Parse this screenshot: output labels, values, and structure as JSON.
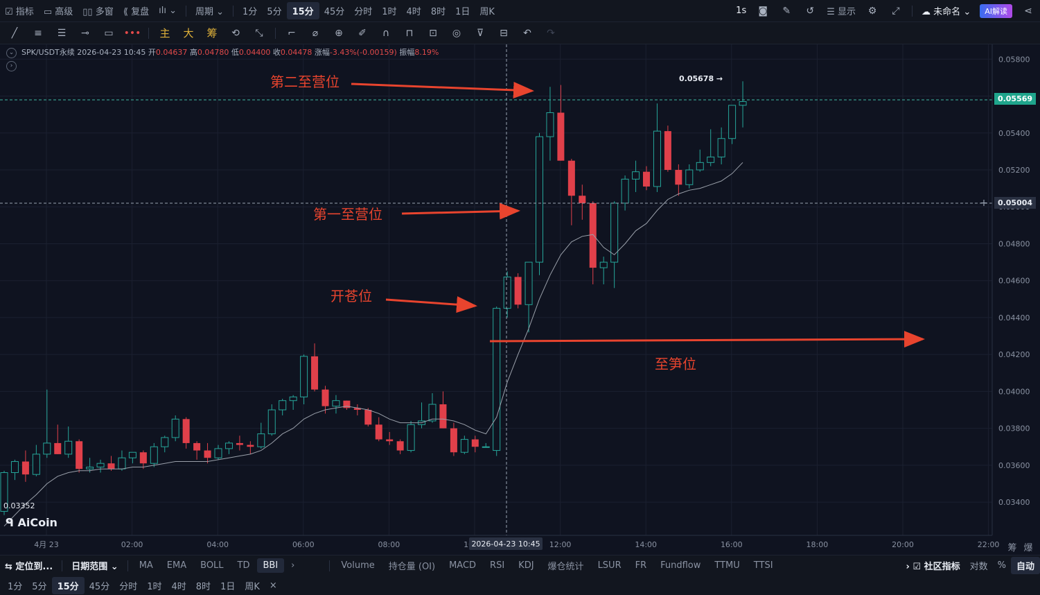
{
  "topbar": {
    "left": [
      "指标",
      "高级",
      "多窗",
      "复盘"
    ],
    "period_label": "周期",
    "periods": [
      "1分",
      "5分",
      "15分",
      "45分",
      "分时",
      "1时",
      "4时",
      "8时",
      "1日",
      "周K"
    ],
    "active_period": "15分",
    "right_items": [
      "1s",
      "显示",
      "未命名"
    ],
    "ai_label": "AI解读"
  },
  "toolbar": {
    "text_tools": [
      "主",
      "大",
      "筹"
    ]
  },
  "infoline": {
    "symbol": "SPK/USDT永续",
    "datetime": "2026-04-23 10:45",
    "open_label": "开",
    "open": "0.04637",
    "high_label": "高",
    "high": "0.04780",
    "low_label": "低",
    "low": "0.04400",
    "close_label": "收",
    "close": "0.04478",
    "change_label": "涨幅",
    "change": "-3.43%(-0.00159)",
    "amp_label": "振幅",
    "amp": "8.19%"
  },
  "logo": "AiCoin",
  "price_tags": {
    "current": "0.05569",
    "crosshair": "0.05004",
    "high_marker": "0.05678 →",
    "low_marker": "0.03352"
  },
  "crosshair_time": "2026-04-23 10:45",
  "annotations": [
    "第二至营位",
    "第一至营位",
    "开苍位",
    "至笋位"
  ],
  "chart_data": {
    "type": "candlestick",
    "y_ticks": [
      0.058,
      0.056,
      0.054,
      0.052,
      0.05,
      0.048,
      0.046,
      0.044,
      0.042,
      0.04,
      0.038,
      0.036,
      0.034
    ],
    "y_tick_labels": [
      "0.05800",
      "0.05600",
      "0.05400",
      "0.05200",
      "0.05000",
      "0.04800",
      "0.04600",
      "0.04400",
      "0.04200",
      "0.04000",
      "0.03800",
      "0.03600",
      "0.03400"
    ],
    "ylim": [
      0.0322,
      0.0588
    ],
    "x_labels": [
      "4月 23",
      "02:00",
      "04:00",
      "06:00",
      "08:00",
      "10:00",
      "12:00",
      "14:00",
      "16:00",
      "18:00",
      "20:00",
      "22:00"
    ],
    "candles": [
      [
        0.0335,
        0.0357,
        0.0333,
        0.0356
      ],
      [
        0.0356,
        0.0363,
        0.0352,
        0.0362
      ],
      [
        0.0362,
        0.0368,
        0.0351,
        0.0355
      ],
      [
        0.0355,
        0.0371,
        0.0354,
        0.0366
      ],
      [
        0.0366,
        0.0401,
        0.0364,
        0.0372
      ],
      [
        0.0372,
        0.0382,
        0.0366,
        0.0366
      ],
      [
        0.0366,
        0.0381,
        0.0364,
        0.0373
      ],
      [
        0.0373,
        0.0374,
        0.0356,
        0.0358
      ],
      [
        0.0358,
        0.0364,
        0.0356,
        0.0359
      ],
      [
        0.0359,
        0.0363,
        0.0356,
        0.0361
      ],
      [
        0.0361,
        0.0365,
        0.0357,
        0.0358
      ],
      [
        0.0358,
        0.0368,
        0.0357,
        0.0364
      ],
      [
        0.0364,
        0.0367,
        0.0361,
        0.0367
      ],
      [
        0.0367,
        0.0368,
        0.0358,
        0.0361
      ],
      [
        0.0361,
        0.0372,
        0.0359,
        0.037
      ],
      [
        0.037,
        0.0376,
        0.0367,
        0.0375
      ],
      [
        0.0375,
        0.0387,
        0.0373,
        0.0385
      ],
      [
        0.0385,
        0.0386,
        0.0369,
        0.0372
      ],
      [
        0.0372,
        0.0373,
        0.0363,
        0.0368
      ],
      [
        0.0368,
        0.0372,
        0.0361,
        0.0364
      ],
      [
        0.0364,
        0.0371,
        0.0363,
        0.0369
      ],
      [
        0.0369,
        0.0373,
        0.0366,
        0.0372
      ],
      [
        0.0372,
        0.0376,
        0.0368,
        0.0371
      ],
      [
        0.0371,
        0.0373,
        0.0366,
        0.037
      ],
      [
        0.037,
        0.0383,
        0.0369,
        0.0377
      ],
      [
        0.0377,
        0.0393,
        0.0376,
        0.039
      ],
      [
        0.039,
        0.0396,
        0.0387,
        0.0395
      ],
      [
        0.0395,
        0.0398,
        0.039,
        0.0397
      ],
      [
        0.0397,
        0.042,
        0.0393,
        0.0419
      ],
      [
        0.0419,
        0.0426,
        0.04,
        0.0401
      ],
      [
        0.0401,
        0.0403,
        0.0388,
        0.0392
      ],
      [
        0.0392,
        0.0398,
        0.0388,
        0.0395
      ],
      [
        0.0395,
        0.0395,
        0.039,
        0.0391
      ],
      [
        0.0391,
        0.0393,
        0.0387,
        0.039
      ],
      [
        0.039,
        0.0391,
        0.0381,
        0.0382
      ],
      [
        0.0382,
        0.0386,
        0.0373,
        0.0374
      ],
      [
        0.0374,
        0.0378,
        0.0371,
        0.0373
      ],
      [
        0.0373,
        0.0374,
        0.0366,
        0.0368
      ],
      [
        0.0368,
        0.0384,
        0.0367,
        0.0382
      ],
      [
        0.0382,
        0.0394,
        0.038,
        0.0384
      ],
      [
        0.0384,
        0.0399,
        0.0383,
        0.0393
      ],
      [
        0.0393,
        0.04,
        0.038,
        0.038
      ],
      [
        0.038,
        0.0383,
        0.0365,
        0.0367
      ],
      [
        0.0367,
        0.0376,
        0.0366,
        0.0374
      ],
      [
        0.0374,
        0.0376,
        0.0367,
        0.037
      ],
      [
        0.037,
        0.0372,
        0.037,
        0.037
      ],
      [
        0.0368,
        0.0446,
        0.0365,
        0.0445
      ],
      [
        0.0445,
        0.0465,
        0.044,
        0.0462
      ],
      [
        0.0462,
        0.0464,
        0.0445,
        0.0447
      ],
      [
        0.0447,
        0.047,
        0.0432,
        0.047
      ],
      [
        0.047,
        0.054,
        0.0463,
        0.0538
      ],
      [
        0.0538,
        0.0565,
        0.0525,
        0.0551
      ],
      [
        0.0551,
        0.0566,
        0.0525,
        0.0525
      ],
      [
        0.0525,
        0.0526,
        0.049,
        0.0506
      ],
      [
        0.0506,
        0.0512,
        0.0493,
        0.0502
      ],
      [
        0.0502,
        0.0503,
        0.0458,
        0.0467
      ],
      [
        0.0467,
        0.0473,
        0.0458,
        0.047
      ],
      [
        0.047,
        0.0503,
        0.0456,
        0.0502
      ],
      [
        0.0502,
        0.0517,
        0.0498,
        0.0515
      ],
      [
        0.0515,
        0.0525,
        0.0508,
        0.0519
      ],
      [
        0.0519,
        0.0522,
        0.0509,
        0.0511
      ],
      [
        0.0511,
        0.0556,
        0.0508,
        0.0541
      ],
      [
        0.0541,
        0.0544,
        0.0519,
        0.052
      ],
      [
        0.052,
        0.0523,
        0.0506,
        0.0512
      ],
      [
        0.0512,
        0.0523,
        0.051,
        0.052
      ],
      [
        0.052,
        0.0531,
        0.0519,
        0.0524
      ],
      [
        0.0524,
        0.0542,
        0.0522,
        0.0527
      ],
      [
        0.0527,
        0.0543,
        0.0523,
        0.0537
      ],
      [
        0.0537,
        0.0555,
        0.0534,
        0.0555
      ],
      [
        0.0555,
        0.0568,
        0.0543,
        0.0557
      ]
    ],
    "ma_line": [
      0.0327,
      0.0333,
      0.0339,
      0.0344,
      0.035,
      0.0354,
      0.0356,
      0.0357,
      0.0357,
      0.0358,
      0.0358,
      0.0358,
      0.0359,
      0.0359,
      0.036,
      0.0361,
      0.0362,
      0.0362,
      0.0362,
      0.0362,
      0.0363,
      0.0364,
      0.0365,
      0.0366,
      0.0368,
      0.0372,
      0.0377,
      0.038,
      0.0385,
      0.0388,
      0.039,
      0.0391,
      0.0392,
      0.0391,
      0.039,
      0.0388,
      0.0385,
      0.0383,
      0.0383,
      0.0383,
      0.0385,
      0.0385,
      0.0384,
      0.0382,
      0.0379,
      0.0377,
      0.0386,
      0.0405,
      0.042,
      0.0434,
      0.045,
      0.0463,
      0.0474,
      0.0481,
      0.0484,
      0.0485,
      0.0478,
      0.0474,
      0.048,
      0.0487,
      0.0491,
      0.0498,
      0.0504,
      0.0507,
      0.0509,
      0.051,
      0.0512,
      0.0514,
      0.0518,
      0.0524
    ]
  },
  "indicators_bar": {
    "left_buttons": [
      "定位到...",
      "日期范围"
    ],
    "main_indicators": [
      "MA",
      "EMA",
      "BOLL",
      "TD",
      "BBI"
    ],
    "active_main": "BBI",
    "sub_indicators": [
      "Volume",
      "持仓量 (OI)",
      "MACD",
      "RSI",
      "KDJ",
      "爆仓统计",
      "LSUR",
      "FR",
      "Fundflow",
      "TTMU",
      "TTSI"
    ],
    "community": "社区指标",
    "right": [
      "对数",
      "%",
      "自动"
    ]
  },
  "period_bar": {
    "periods": [
      "1分",
      "5分",
      "15分",
      "45分",
      "分时",
      "1时",
      "4时",
      "8时",
      "1日",
      "周K"
    ],
    "active": "15分",
    "close": "×"
  },
  "side_labels": [
    "筹",
    "爆"
  ]
}
